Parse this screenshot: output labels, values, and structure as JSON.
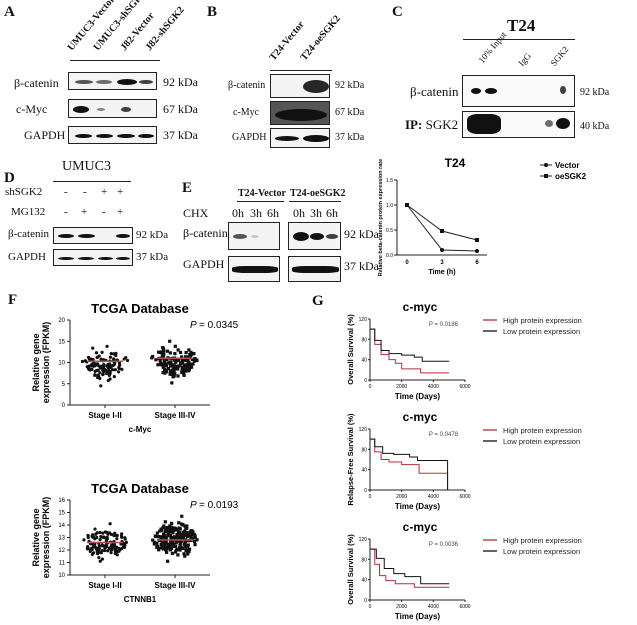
{
  "panelA": {
    "label": "A",
    "lanes": [
      "UMUC3-Vector",
      "UMUC3-shSGK2",
      "J82-Vector",
      "J82-shSGK2"
    ],
    "rows": [
      {
        "name": "β-catenin",
        "kda": "92 kDa"
      },
      {
        "name": "c-Myc",
        "kda": "67 kDa"
      },
      {
        "name": "GAPDH",
        "kda": "37 kDa"
      }
    ]
  },
  "panelB": {
    "label": "B",
    "lanes": [
      "T24-Vector",
      "T24-oeSGK2"
    ],
    "rows": [
      {
        "name": "β-catenin",
        "kda": "92 kDa"
      },
      {
        "name": "c-Myc",
        "kda": "67 kDa"
      },
      {
        "name": "GAPDH",
        "kda": "37 kDa"
      }
    ]
  },
  "panelC": {
    "label": "C",
    "title": "T24",
    "lanes": [
      "10% Input",
      "IgG",
      "SGK2"
    ],
    "rows": [
      {
        "name": "β-catenin",
        "kda": "92 kDa"
      },
      {
        "name_bold": "IP:",
        "name": " SGK2",
        "kda": "40 kDa"
      }
    ]
  },
  "panelD": {
    "label": "D",
    "title": "UMUC3",
    "conditions": [
      {
        "name": "shSGK2",
        "values": [
          "-",
          "-",
          "+",
          "+"
        ]
      },
      {
        "name": "MG132",
        "values": [
          "-",
          "+",
          "-",
          "+"
        ]
      }
    ],
    "rows": [
      {
        "name": "β-catenin",
        "kda": "92 kDa"
      },
      {
        "name": "GAPDH",
        "kda": "37 kDa"
      }
    ]
  },
  "panelE": {
    "label": "E",
    "groups": [
      "T24-Vector",
      "T24-oeSGK2"
    ],
    "treatment": "CHX",
    "times": [
      "0h",
      "3h",
      "6h"
    ],
    "rows": [
      {
        "name": "β-catenin",
        "kda": "92 kDa"
      },
      {
        "name": "GAPDH",
        "kda": "37 kDa"
      }
    ]
  },
  "panelF": {
    "label": "F"
  },
  "panelG": {
    "label": "G"
  },
  "chart_data": [
    {
      "id": "E-line",
      "type": "line",
      "title": "T24",
      "xlabel": "Time (h)",
      "ylabel": "Relative beta-catenin protein expression rate",
      "x": [
        0,
        3,
        6
      ],
      "xticks": [
        "0",
        "3",
        "6"
      ],
      "ylim": [
        0,
        1.5
      ],
      "yticks": [
        "0.0",
        "0.5",
        "1.0",
        "1.5"
      ],
      "legend": "top-right",
      "series": [
        {
          "name": "Vector",
          "values": [
            1.0,
            0.1,
            0.08
          ],
          "marker": "circle"
        },
        {
          "name": "oeSGK2",
          "values": [
            1.0,
            0.48,
            0.3
          ],
          "marker": "square"
        }
      ]
    },
    {
      "id": "F1",
      "type": "scatter",
      "title": "TCGA Database",
      "xlabel": "c-Myc",
      "ylabel": "Relative gene expression (FPKM)",
      "categories": [
        "Stage I-II",
        "Stage III-IV"
      ],
      "ylim": [
        0,
        20
      ],
      "yticks": [
        "0",
        "5",
        "10",
        "15",
        "20"
      ],
      "pvalue_label": "P",
      "pvalue": "= 0.0345",
      "groups": [
        {
          "mean": 10.3,
          "min": 4.5,
          "max": 13.8,
          "n": 110,
          "marker": "circle"
        },
        {
          "mean": 11.0,
          "min": 5.2,
          "max": 15.0,
          "n": 150,
          "marker": "square"
        }
      ]
    },
    {
      "id": "F2",
      "type": "scatter",
      "title": "TCGA Database",
      "xlabel": "CTNNB1",
      "ylabel": "Relative gene expression (FPKM)",
      "categories": [
        "Stage I-II",
        "Stage III-IV"
      ],
      "ylim": [
        10,
        16
      ],
      "yticks": [
        "10",
        "11",
        "12",
        "13",
        "14",
        "15",
        "16"
      ],
      "pvalue_label": "P",
      "pvalue": "= 0.0193",
      "groups": [
        {
          "mean": 12.6,
          "min": 11.1,
          "max": 14.1,
          "n": 130,
          "marker": "circle"
        },
        {
          "mean": 12.8,
          "min": 11.1,
          "max": 14.7,
          "n": 200,
          "marker": "square"
        }
      ]
    },
    {
      "id": "G1",
      "type": "line",
      "title": "c-myc",
      "xlabel": "Time (Days)",
      "ylabel": "Overall Survival (%)",
      "xlim": [
        0,
        6000
      ],
      "xticks": [
        "0",
        "2000",
        "4000",
        "6000"
      ],
      "ylim": [
        0,
        120
      ],
      "yticks": [
        "0",
        "40",
        "80",
        "120"
      ],
      "pvalue": "P = 0.0186",
      "legend": "right",
      "series": [
        {
          "name": "High protein expression",
          "color": "#b03040",
          "x": [
            0,
            300,
            700,
            1200,
            1600,
            2000,
            3200,
            5000
          ],
          "values": [
            100,
            70,
            50,
            40,
            33,
            22,
            14,
            14
          ]
        },
        {
          "name": "Low protein expression",
          "color": "#111111",
          "x": [
            0,
            300,
            700,
            1200,
            2000,
            2800,
            3300,
            5000
          ],
          "values": [
            100,
            78,
            58,
            52,
            49,
            45,
            37,
            37
          ]
        }
      ]
    },
    {
      "id": "G2",
      "type": "line",
      "title": "c-myc",
      "xlabel": "Time (Days)",
      "ylabel": "Relapse-Free Survival (%)",
      "xlim": [
        0,
        6000
      ],
      "xticks": [
        "0",
        "2000",
        "4000",
        "6000"
      ],
      "ylim": [
        0,
        120
      ],
      "yticks": [
        "0",
        "40",
        "80",
        "120"
      ],
      "pvalue": "P = 0.0478",
      "legend": "right",
      "series": [
        {
          "name": "High protein expression",
          "color": "#b03040",
          "x": [
            0,
            300,
            700,
            1200,
            2000,
            3100,
            4900,
            4900
          ],
          "values": [
            100,
            75,
            60,
            55,
            50,
            33,
            33,
            0
          ]
        },
        {
          "name": "Low protein expression",
          "color": "#111111",
          "x": [
            0,
            300,
            800,
            1500,
            2500,
            3000,
            4900,
            4900
          ],
          "values": [
            100,
            85,
            72,
            70,
            65,
            58,
            58,
            0
          ]
        }
      ]
    },
    {
      "id": "G3",
      "type": "line",
      "title": "c-myc",
      "xlabel": "Time (Days)",
      "ylabel": "Overall Survival (%)",
      "xlim": [
        0,
        6000
      ],
      "xticks": [
        "0",
        "2000",
        "4000",
        "6000"
      ],
      "ylim": [
        0,
        120
      ],
      "yticks": [
        "0",
        "40",
        "80",
        "120"
      ],
      "pvalue": "P = 0.0036",
      "legend": "right",
      "series": [
        {
          "name": "High protein expression",
          "color": "#b03040",
          "x": [
            0,
            300,
            600,
            1000,
            1600,
            2800,
            5000
          ],
          "values": [
            100,
            70,
            48,
            38,
            32,
            25,
            25
          ]
        },
        {
          "name": "Low protein expression",
          "color": "#111111",
          "x": [
            0,
            400,
            900,
            1500,
            2200,
            3200,
            5000
          ],
          "values": [
            100,
            82,
            62,
            52,
            46,
            32,
            32
          ]
        }
      ]
    }
  ]
}
